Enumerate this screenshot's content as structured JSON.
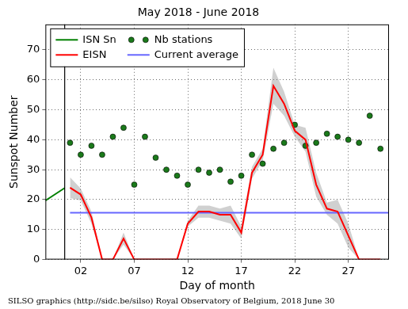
{
  "chart_data": {
    "type": "line",
    "title": "May 2018 - June 2018",
    "x_label": "Day of month",
    "y_label": "Sunspot Number",
    "caption": "SILSO graphics (http://sidc.be/silso) Royal Observatory of Belgium, 2018 June 30",
    "xlim": [
      -1.3,
      30.8
    ],
    "xticks": [
      {
        "value": 2,
        "label": "02"
      },
      {
        "value": 7,
        "label": "07"
      },
      12,
      17,
      22,
      27
    ],
    "ylim": [
      0,
      78.5
    ],
    "yticks": [
      0,
      10,
      20,
      30,
      40,
      50,
      60,
      70
    ],
    "grid": true,
    "legend": "upper left",
    "vertical_line": 0.5,
    "series": [
      {
        "name": "ISN Sn",
        "type": "line",
        "color": "#007f00",
        "x": [
          -1.3,
          0.5
        ],
        "values": [
          19.7,
          23.9
        ]
      },
      {
        "name": "EISN",
        "type": "line",
        "color": "#ff0000",
        "x": [
          1,
          2,
          3,
          4,
          5,
          6,
          7,
          8,
          9,
          10,
          11,
          12,
          13,
          14,
          15,
          16,
          17,
          18,
          19,
          20,
          21,
          22,
          23,
          24,
          25,
          26,
          27,
          28,
          29,
          30
        ],
        "values": [
          24,
          21.7,
          14,
          0,
          0,
          7,
          0,
          0,
          0,
          0,
          0,
          12,
          16,
          16,
          15,
          15,
          9,
          29,
          35,
          58,
          52,
          43,
          40,
          25,
          17,
          16,
          8,
          0,
          0,
          0
        ],
        "error": [
          3.5,
          2,
          2,
          0,
          0,
          2,
          0,
          0,
          0,
          0,
          0,
          1,
          2,
          2,
          2,
          3,
          2,
          2,
          2,
          6,
          4,
          2,
          4,
          4,
          2,
          4,
          4,
          0,
          0,
          0
        ]
      },
      {
        "name": "Nb stations",
        "type": "scatter",
        "marker": "circle",
        "color": "#1a7a1a",
        "x": [
          1,
          2,
          3,
          4,
          5,
          6,
          7,
          8,
          9,
          10,
          11,
          12,
          13,
          14,
          15,
          16,
          17,
          18,
          19,
          20,
          21,
          22,
          23,
          24,
          25,
          26,
          27,
          28,
          29,
          30
        ],
        "values": [
          39,
          35,
          38,
          35,
          41,
          44,
          25,
          41,
          34,
          30,
          28,
          25,
          30,
          29,
          30,
          26,
          28,
          35,
          32,
          37,
          39,
          45,
          38,
          39,
          42,
          41,
          40,
          39,
          48,
          37
        ]
      },
      {
        "name": "Current average",
        "type": "line",
        "color": "#6666ff",
        "x": [
          1,
          30.8
        ],
        "values": [
          15.6,
          15.6
        ]
      }
    ]
  }
}
